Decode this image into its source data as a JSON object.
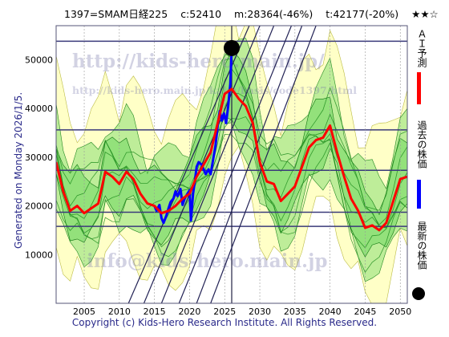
{
  "header": {
    "code": "1397=SMAM日経225",
    "close": "c:52410",
    "min": "m:28364(-46%)",
    "target": "t:42177(-20%)",
    "stars": "★★☆"
  },
  "watermark": {
    "line1": "http://kids-hero.main.jp/",
    "line2": "http://kids-hero.main.jp/kabu/basis/code1397.html",
    "line3": "info@kids-hero.main.jp"
  },
  "generated": "Generated on Monday 2026/1/5.",
  "footer": "Copyright (c) Kids-Hero Research Institute. All Rights Reserved.",
  "legend": {
    "ai": "ＡＩ予測",
    "past": "過去の株価",
    "latest": "最新の株価"
  },
  "colors": {
    "ai": "#ff0000",
    "past": "#0000ff",
    "latest": "#000000",
    "band_green": "#44cc44",
    "band_yellow": "#ffff99",
    "grid": "#3a3a7a"
  },
  "chart_data": {
    "type": "line",
    "xlim": [
      2001,
      2051
    ],
    "ylim": [
      0,
      57000
    ],
    "x_ticks": [
      2005,
      2010,
      2015,
      2020,
      2025,
      2030,
      2035,
      2040,
      2045,
      2050
    ],
    "y_ticks": [
      10000,
      20000,
      30000,
      40000,
      50000
    ],
    "hlines": [
      53800,
      35600,
      27300,
      18700,
      15800
    ],
    "latest_point": {
      "x": 2026.0,
      "y": 52410
    },
    "series": [
      {
        "key": "past",
        "points": [
          [
            2015.0,
            20000
          ],
          [
            2015.3,
            19000
          ],
          [
            2015.7,
            20200
          ],
          [
            2016.0,
            17500
          ],
          [
            2016.3,
            16500
          ],
          [
            2016.7,
            18000
          ],
          [
            2017.0,
            19500
          ],
          [
            2017.3,
            20800
          ],
          [
            2017.7,
            21500
          ],
          [
            2018.0,
            23000
          ],
          [
            2018.3,
            22000
          ],
          [
            2018.7,
            23500
          ],
          [
            2019.0,
            20200
          ],
          [
            2019.3,
            21500
          ],
          [
            2019.7,
            22500
          ],
          [
            2020.0,
            23200
          ],
          [
            2020.2,
            17000
          ],
          [
            2020.5,
            22500
          ],
          [
            2020.8,
            25500
          ],
          [
            2021.0,
            28000
          ],
          [
            2021.3,
            29000
          ],
          [
            2021.7,
            28500
          ],
          [
            2022.0,
            27500
          ],
          [
            2022.3,
            26500
          ],
          [
            2022.7,
            27500
          ],
          [
            2023.0,
            26500
          ],
          [
            2023.3,
            29000
          ],
          [
            2023.7,
            32500
          ],
          [
            2024.0,
            36500
          ],
          [
            2024.3,
            39500
          ],
          [
            2024.6,
            37500
          ],
          [
            2024.9,
            39000
          ],
          [
            2025.2,
            37000
          ],
          [
            2025.5,
            40500
          ],
          [
            2025.8,
            45000
          ],
          [
            2026.0,
            52410
          ]
        ]
      },
      {
        "key": "ai",
        "points": [
          [
            2001.0,
            29000
          ],
          [
            2002.0,
            23000
          ],
          [
            2003.0,
            19000
          ],
          [
            2004.0,
            20000
          ],
          [
            2005.0,
            18500
          ],
          [
            2006.0,
            19500
          ],
          [
            2007.0,
            20500
          ],
          [
            2008.0,
            27000
          ],
          [
            2009.0,
            26000
          ],
          [
            2010.0,
            24500
          ],
          [
            2011.0,
            27000
          ],
          [
            2012.0,
            25500
          ],
          [
            2013.0,
            22500
          ],
          [
            2014.0,
            20500
          ],
          [
            2015.0,
            20000
          ],
          [
            2016.0,
            18500
          ],
          [
            2017.0,
            19000
          ],
          [
            2018.0,
            20000
          ],
          [
            2019.0,
            21500
          ],
          [
            2020.0,
            22500
          ],
          [
            2021.0,
            26000
          ],
          [
            2022.0,
            28500
          ],
          [
            2023.0,
            31000
          ],
          [
            2024.0,
            37000
          ],
          [
            2025.0,
            43000
          ],
          [
            2026.0,
            44000
          ],
          [
            2027.0,
            42000
          ],
          [
            2028.0,
            40500
          ],
          [
            2029.0,
            37000
          ],
          [
            2030.0,
            29000
          ],
          [
            2031.0,
            25000
          ],
          [
            2032.0,
            24500
          ],
          [
            2033.0,
            21000
          ],
          [
            2034.0,
            22500
          ],
          [
            2035.0,
            24000
          ],
          [
            2036.0,
            28000
          ],
          [
            2037.0,
            32000
          ],
          [
            2038.0,
            33500
          ],
          [
            2039.0,
            34000
          ],
          [
            2040.0,
            36500
          ],
          [
            2041.0,
            31000
          ],
          [
            2042.0,
            26000
          ],
          [
            2043.0,
            21500
          ],
          [
            2044.0,
            19000
          ],
          [
            2045.0,
            15500
          ],
          [
            2046.0,
            16000
          ],
          [
            2047.0,
            15000
          ],
          [
            2048.0,
            16500
          ],
          [
            2049.0,
            21000
          ],
          [
            2050.0,
            25500
          ],
          [
            2051.0,
            26000
          ]
        ]
      }
    ]
  }
}
